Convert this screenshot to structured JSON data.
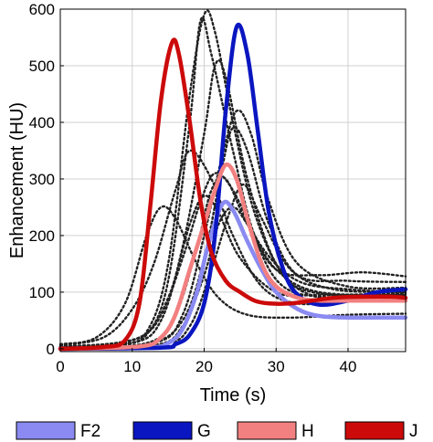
{
  "chart_data": {
    "type": "line",
    "xlabel": "Time (s)",
    "ylabel": "Enhancement (HU)",
    "xlim": [
      0,
      48
    ],
    "ylim": [
      -5,
      600
    ],
    "xticks": [
      0,
      10,
      20,
      30,
      40
    ],
    "yticks": [
      0,
      100,
      200,
      300,
      400,
      500,
      600
    ],
    "grid": true,
    "legend_position": "bottom",
    "background_curves": {
      "style": "dotted",
      "color": "#222222",
      "curves": [
        [
          [
            0,
            8
          ],
          [
            5,
            20
          ],
          [
            9,
            80
          ],
          [
            12,
            200
          ],
          [
            14,
            250
          ],
          [
            16,
            230
          ],
          [
            19,
            150
          ],
          [
            22,
            90
          ],
          [
            26,
            60
          ],
          [
            32,
            55
          ],
          [
            40,
            60
          ],
          [
            48,
            62
          ]
        ],
        [
          [
            0,
            6
          ],
          [
            6,
            20
          ],
          [
            10,
            70
          ],
          [
            13,
            150
          ],
          [
            16,
            280
          ],
          [
            18,
            350
          ],
          [
            21,
            300
          ],
          [
            24,
            200
          ],
          [
            28,
            110
          ],
          [
            33,
            80
          ],
          [
            40,
            85
          ],
          [
            48,
            88
          ]
        ],
        [
          [
            0,
            4
          ],
          [
            8,
            8
          ],
          [
            12,
            30
          ],
          [
            15,
            150
          ],
          [
            18,
            450
          ],
          [
            20,
            590
          ],
          [
            21.5,
            560
          ],
          [
            24,
            400
          ],
          [
            27,
            240
          ],
          [
            31,
            130
          ],
          [
            36,
            90
          ],
          [
            42,
            88
          ],
          [
            48,
            85
          ]
        ],
        [
          [
            0,
            4
          ],
          [
            8,
            8
          ],
          [
            12,
            25
          ],
          [
            15,
            120
          ],
          [
            18,
            400
          ],
          [
            19.5,
            580
          ],
          [
            21,
            520
          ],
          [
            24,
            350
          ],
          [
            27,
            200
          ],
          [
            31,
            110
          ],
          [
            38,
            90
          ],
          [
            48,
            85
          ]
        ],
        [
          [
            0,
            4
          ],
          [
            10,
            10
          ],
          [
            14,
            50
          ],
          [
            17,
            180
          ],
          [
            20,
            380
          ],
          [
            21.5,
            500
          ],
          [
            23,
            480
          ],
          [
            26,
            300
          ],
          [
            30,
            150
          ],
          [
            35,
            100
          ],
          [
            48,
            95
          ]
        ],
        [
          [
            0,
            4
          ],
          [
            10,
            15
          ],
          [
            14,
            60
          ],
          [
            17,
            160
          ],
          [
            19.5,
            260
          ],
          [
            21.5,
            310
          ],
          [
            24,
            280
          ],
          [
            28,
            180
          ],
          [
            33,
            120
          ],
          [
            40,
            105
          ],
          [
            48,
            100
          ]
        ],
        [
          [
            0,
            3
          ],
          [
            12,
            10
          ],
          [
            16,
            60
          ],
          [
            19,
            180
          ],
          [
            21,
            280
          ],
          [
            23,
            300
          ],
          [
            26,
            220
          ],
          [
            30,
            140
          ],
          [
            36,
            130
          ],
          [
            42,
            135
          ],
          [
            48,
            128
          ]
        ],
        [
          [
            0,
            3
          ],
          [
            12,
            8
          ],
          [
            17,
            50
          ],
          [
            20,
            160
          ],
          [
            22.5,
            320
          ],
          [
            24,
            390
          ],
          [
            26,
            350
          ],
          [
            29,
            220
          ],
          [
            33,
            130
          ],
          [
            40,
            120
          ],
          [
            48,
            118
          ]
        ],
        [
          [
            0,
            2
          ],
          [
            13,
            6
          ],
          [
            17,
            40
          ],
          [
            20,
            130
          ],
          [
            22,
            220
          ],
          [
            24,
            250
          ],
          [
            26,
            220
          ],
          [
            30,
            140
          ],
          [
            36,
            100
          ],
          [
            48,
            95
          ]
        ],
        [
          [
            0,
            2
          ],
          [
            14,
            8
          ],
          [
            18,
            40
          ],
          [
            21,
            140
          ],
          [
            23.5,
            240
          ],
          [
            25.5,
            290
          ],
          [
            28,
            230
          ],
          [
            32,
            140
          ],
          [
            38,
            105
          ],
          [
            48,
            100
          ]
        ],
        [
          [
            0,
            3
          ],
          [
            11,
            20
          ],
          [
            15,
            90
          ],
          [
            18,
            220
          ],
          [
            20,
            270
          ],
          [
            22,
            240
          ],
          [
            25,
            160
          ],
          [
            30,
            100
          ],
          [
            36,
            95
          ],
          [
            48,
            98
          ]
        ],
        [
          [
            0,
            3
          ],
          [
            13,
            10
          ],
          [
            17,
            60
          ],
          [
            20,
            200
          ],
          [
            22.5,
            340
          ],
          [
            24.5,
            420
          ],
          [
            26.5,
            380
          ],
          [
            29,
            260
          ],
          [
            33,
            150
          ],
          [
            40,
            110
          ],
          [
            48,
            108
          ]
        ]
      ]
    },
    "series": [
      {
        "name": "F2",
        "color": "#8a8af2",
        "points": [
          [
            0,
            0
          ],
          [
            12,
            2
          ],
          [
            15,
            10
          ],
          [
            17,
            35
          ],
          [
            19,
            100
          ],
          [
            20.5,
            180
          ],
          [
            22.5,
            255
          ],
          [
            24,
            245
          ],
          [
            26,
            190
          ],
          [
            28,
            140
          ],
          [
            30,
            100
          ],
          [
            33,
            70
          ],
          [
            36,
            58
          ],
          [
            40,
            55
          ],
          [
            44,
            55
          ],
          [
            48,
            55
          ]
        ]
      },
      {
        "name": "G",
        "color": "#0a16c0",
        "points": [
          [
            0,
            0
          ],
          [
            14,
            2
          ],
          [
            16,
            8
          ],
          [
            18,
            25
          ],
          [
            20,
            80
          ],
          [
            21.5,
            200
          ],
          [
            23,
            420
          ],
          [
            24.5,
            568
          ],
          [
            26,
            520
          ],
          [
            27.5,
            380
          ],
          [
            29,
            240
          ],
          [
            31,
            140
          ],
          [
            33,
            95
          ],
          [
            36,
            78
          ],
          [
            40,
            85
          ],
          [
            44,
            100
          ],
          [
            48,
            105
          ]
        ]
      },
      {
        "name": "H",
        "color": "#f28080",
        "points": [
          [
            0,
            0
          ],
          [
            11,
            4
          ],
          [
            14,
            20
          ],
          [
            16,
            60
          ],
          [
            18,
            140
          ],
          [
            20,
            220
          ],
          [
            21.5,
            280
          ],
          [
            23,
            325
          ],
          [
            24.5,
            300
          ],
          [
            26,
            230
          ],
          [
            28,
            150
          ],
          [
            30,
            110
          ],
          [
            33,
            90
          ],
          [
            36,
            85
          ],
          [
            40,
            85
          ],
          [
            44,
            85
          ],
          [
            48,
            85
          ]
        ]
      },
      {
        "name": "J",
        "color": "#cc0a0a",
        "points": [
          [
            0,
            0
          ],
          [
            6,
            3
          ],
          [
            9,
            15
          ],
          [
            11,
            80
          ],
          [
            12.5,
            250
          ],
          [
            14,
            440
          ],
          [
            15.5,
            540
          ],
          [
            16.5,
            520
          ],
          [
            18,
            400
          ],
          [
            19.5,
            260
          ],
          [
            21,
            170
          ],
          [
            23,
            120
          ],
          [
            25,
            100
          ],
          [
            27,
            85
          ],
          [
            29,
            80
          ],
          [
            32,
            80
          ],
          [
            35,
            85
          ],
          [
            38,
            90
          ],
          [
            42,
            92
          ],
          [
            46,
            92
          ],
          [
            48,
            90
          ]
        ]
      }
    ]
  }
}
